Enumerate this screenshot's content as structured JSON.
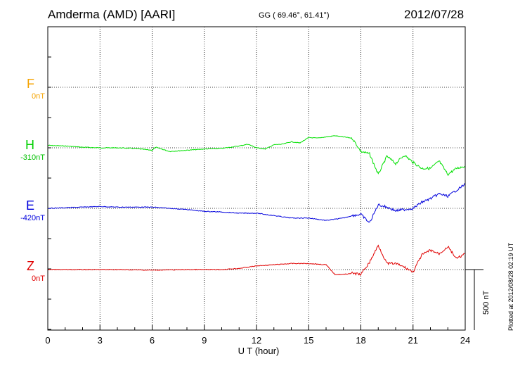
{
  "header": {
    "station": "Amderma (AMD)  [AARI]",
    "coords": "GG ( 69.46°,  61.41°)",
    "date": "2012/07/28"
  },
  "plotted_note": "Plotted at 2012/08/28 02:19 UT",
  "scale_bar": {
    "label": "500 nT",
    "value_nT": 500
  },
  "chart_data": {
    "type": "line",
    "xlabel": "U T (hour)",
    "xlim": [
      0,
      24
    ],
    "xticks": [
      "0",
      "3",
      "6",
      "9",
      "12",
      "15",
      "18",
      "21",
      "24"
    ],
    "series": [
      {
        "name": "F",
        "baseline_label": "0nT",
        "color": "#f5a300",
        "hours": [],
        "values": []
      },
      {
        "name": "H",
        "baseline_label": "-310nT",
        "color": "#00e000",
        "hours": [
          0,
          1,
          2,
          3,
          4,
          5,
          6,
          6.2,
          7,
          8,
          9,
          10,
          10.5,
          11,
          11.5,
          12,
          12.5,
          13,
          13.5,
          14,
          14.5,
          15,
          15.5,
          16,
          16.5,
          17,
          17.5,
          18,
          18.5,
          19,
          19.5,
          20,
          20.5,
          21,
          21.5,
          22,
          22.5,
          23,
          23.5,
          24
        ],
        "values": [
          20,
          15,
          5,
          0,
          0,
          -5,
          -20,
          5,
          -30,
          -20,
          -10,
          -5,
          5,
          15,
          30,
          0,
          -10,
          25,
          30,
          50,
          40,
          85,
          80,
          90,
          100,
          90,
          80,
          -30,
          -50,
          -220,
          -70,
          -130,
          -60,
          -120,
          -170,
          -170,
          -110,
          -220,
          -170,
          -150
        ]
      },
      {
        "name": "E",
        "baseline_label": "-420nT",
        "color": "#0000dd",
        "hours": [
          0,
          1,
          2,
          3,
          4,
          5,
          6,
          7,
          8,
          9,
          10,
          11,
          12,
          13,
          14,
          15,
          16,
          17,
          17.5,
          18,
          18.5,
          19,
          19.5,
          20,
          20.5,
          21,
          21.5,
          22,
          22.5,
          23,
          23.5,
          24
        ],
        "values": [
          0,
          5,
          10,
          15,
          10,
          10,
          10,
          0,
          -10,
          -25,
          -30,
          -40,
          -40,
          -60,
          -80,
          -80,
          -100,
          -80,
          -60,
          -50,
          -120,
          30,
          10,
          -20,
          -10,
          0,
          50,
          80,
          120,
          100,
          150,
          200
        ]
      },
      {
        "name": "Z",
        "baseline_label": "0nT",
        "color": "#e00000",
        "hours": [
          0,
          2,
          4,
          6,
          8,
          10,
          11,
          12,
          13,
          14,
          15,
          16,
          16.5,
          17,
          17.5,
          18,
          18.5,
          19,
          19.5,
          20,
          20.5,
          21,
          21.5,
          22,
          22.5,
          23,
          23.5,
          24
        ],
        "values": [
          0,
          0,
          0,
          -5,
          0,
          0,
          10,
          30,
          40,
          50,
          50,
          40,
          -40,
          -40,
          -30,
          -40,
          60,
          200,
          50,
          50,
          20,
          -20,
          120,
          160,
          130,
          190,
          90,
          130
        ]
      }
    ]
  }
}
